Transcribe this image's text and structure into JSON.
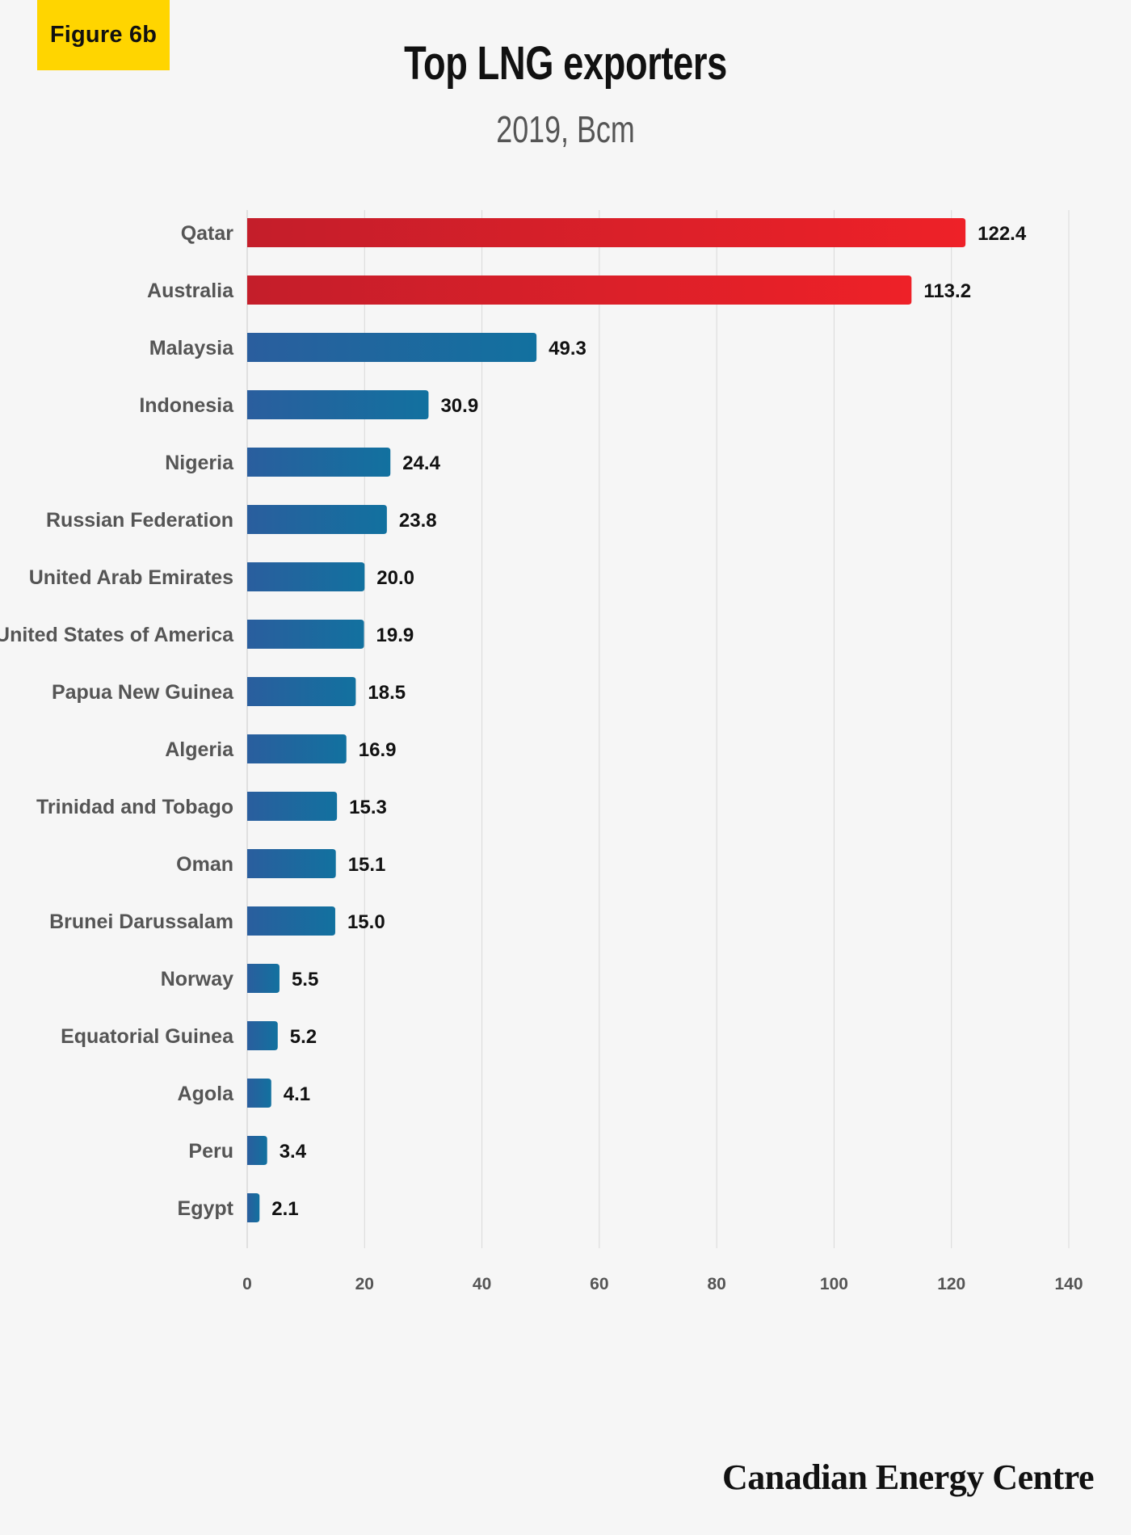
{
  "badge": "Figure 6b",
  "title": "Top LNG exporters",
  "subtitle": "2019, Bcm",
  "brand": "Canadian Energy Centre",
  "colors": {
    "highlight_start": "#c41e2a",
    "highlight_end": "#ee2128",
    "bar_start": "#2a5e9e",
    "bar_end": "#12719f",
    "grid": "#d9d9d9",
    "badge": "#ffd500"
  },
  "chart_data": {
    "type": "bar",
    "orientation": "horizontal",
    "title": "Top LNG exporters",
    "subtitle": "2019, Bcm",
    "categories": [
      "Qatar",
      "Australia",
      "Malaysia",
      "Indonesia",
      "Nigeria",
      "Russian Federation",
      "United Arab Emirates",
      "United States of America",
      "Papua New Guinea",
      "Algeria",
      "Trinidad and Tobago",
      "Oman",
      "Brunei Darussalam",
      "Norway",
      "Equatorial Guinea",
      "Agola",
      "Peru",
      "Egypt"
    ],
    "values": [
      122.4,
      113.2,
      49.3,
      30.9,
      24.4,
      23.8,
      20.0,
      19.9,
      18.5,
      16.9,
      15.3,
      15.1,
      15.0,
      5.5,
      5.2,
      4.1,
      3.4,
      2.1
    ],
    "value_labels": [
      "122.4",
      "113.2",
      "49.3",
      "30.9",
      "24.4",
      "23.8",
      "20.0",
      "19.9",
      "18.5",
      "16.9",
      "15.3",
      "15.1",
      "15.0",
      "5.5",
      "5.2",
      "4.1",
      "3.4",
      "2.1"
    ],
    "highlighted": [
      "Qatar",
      "Australia"
    ],
    "xlim": [
      0,
      140
    ],
    "xticks": [
      0,
      20,
      40,
      60,
      80,
      100,
      120,
      140
    ],
    "grid": true
  }
}
